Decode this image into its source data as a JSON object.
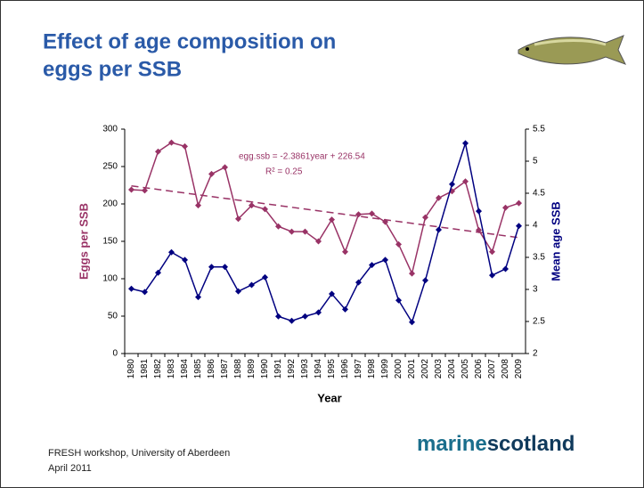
{
  "chart_data": {
    "type": "line",
    "title": [
      "Effect of age composition on",
      "eggs per SSB"
    ],
    "x_label": "Year",
    "y_label": "Eggs per SSB",
    "y2_label": "Mean age SSB",
    "categories": [
      "1980",
      "1981",
      "1982",
      "1983",
      "1984",
      "1985",
      "1986",
      "1987",
      "1988",
      "1989",
      "1990",
      "1991",
      "1992",
      "1993",
      "1994",
      "1995",
      "1996",
      "1997",
      "1998",
      "1999",
      "2000",
      "2001",
      "2002",
      "2003",
      "2004",
      "2005",
      "2006",
      "2007",
      "2008",
      "2009"
    ],
    "series": [
      {
        "name": "Eggs per SSB",
        "color": "#993366",
        "values": [
          219,
          218,
          270,
          282,
          277,
          198,
          240,
          249,
          180,
          198,
          193,
          170,
          163,
          163,
          150,
          179,
          136,
          186,
          187,
          176,
          146,
          107,
          182,
          208,
          217,
          230,
          165,
          136,
          195,
          201
        ]
      },
      {
        "name": "Mean age SSB",
        "color": "#000080",
        "axis": "y2",
        "values": [
          3.01,
          2.96,
          3.26,
          3.58,
          3.46,
          2.88,
          3.35,
          3.35,
          2.97,
          3.07,
          3.19,
          2.58,
          2.51,
          2.58,
          2.64,
          2.93,
          2.69,
          3.11,
          3.38,
          3.46,
          2.83,
          2.49,
          3.14,
          3.93,
          4.64,
          5.28,
          4.22,
          3.22,
          3.32,
          3.99
        ]
      }
    ],
    "trendline": {
      "color": "#993366",
      "equation": "egg.ssb = -2.3861year + 226.54",
      "r2": "R² = 0.25",
      "values": [
        224.15,
        221.77,
        219.38,
        216.99,
        214.61,
        212.22,
        209.84,
        207.45,
        205.07,
        202.68,
        200.29,
        197.91,
        195.52,
        193.13,
        190.75,
        188.36,
        185.98,
        183.59,
        181.2,
        178.82,
        176.43,
        174.05,
        171.66,
        169.27,
        166.89,
        164.5,
        162.12,
        159.73,
        157.34,
        154.96
      ]
    },
    "ylim": [
      0,
      300
    ],
    "yticks": [
      0,
      50,
      100,
      150,
      200,
      250,
      300
    ],
    "y2lim": [
      2,
      5.5
    ],
    "y2ticks": [
      2,
      2.5,
      3,
      3.5,
      4,
      4.5,
      5,
      5.5
    ]
  },
  "footer": {
    "lines": [
      "FRESH workshop, University of Aberdeen",
      "April 2011"
    ],
    "logo": [
      "marine",
      "scotland"
    ]
  }
}
